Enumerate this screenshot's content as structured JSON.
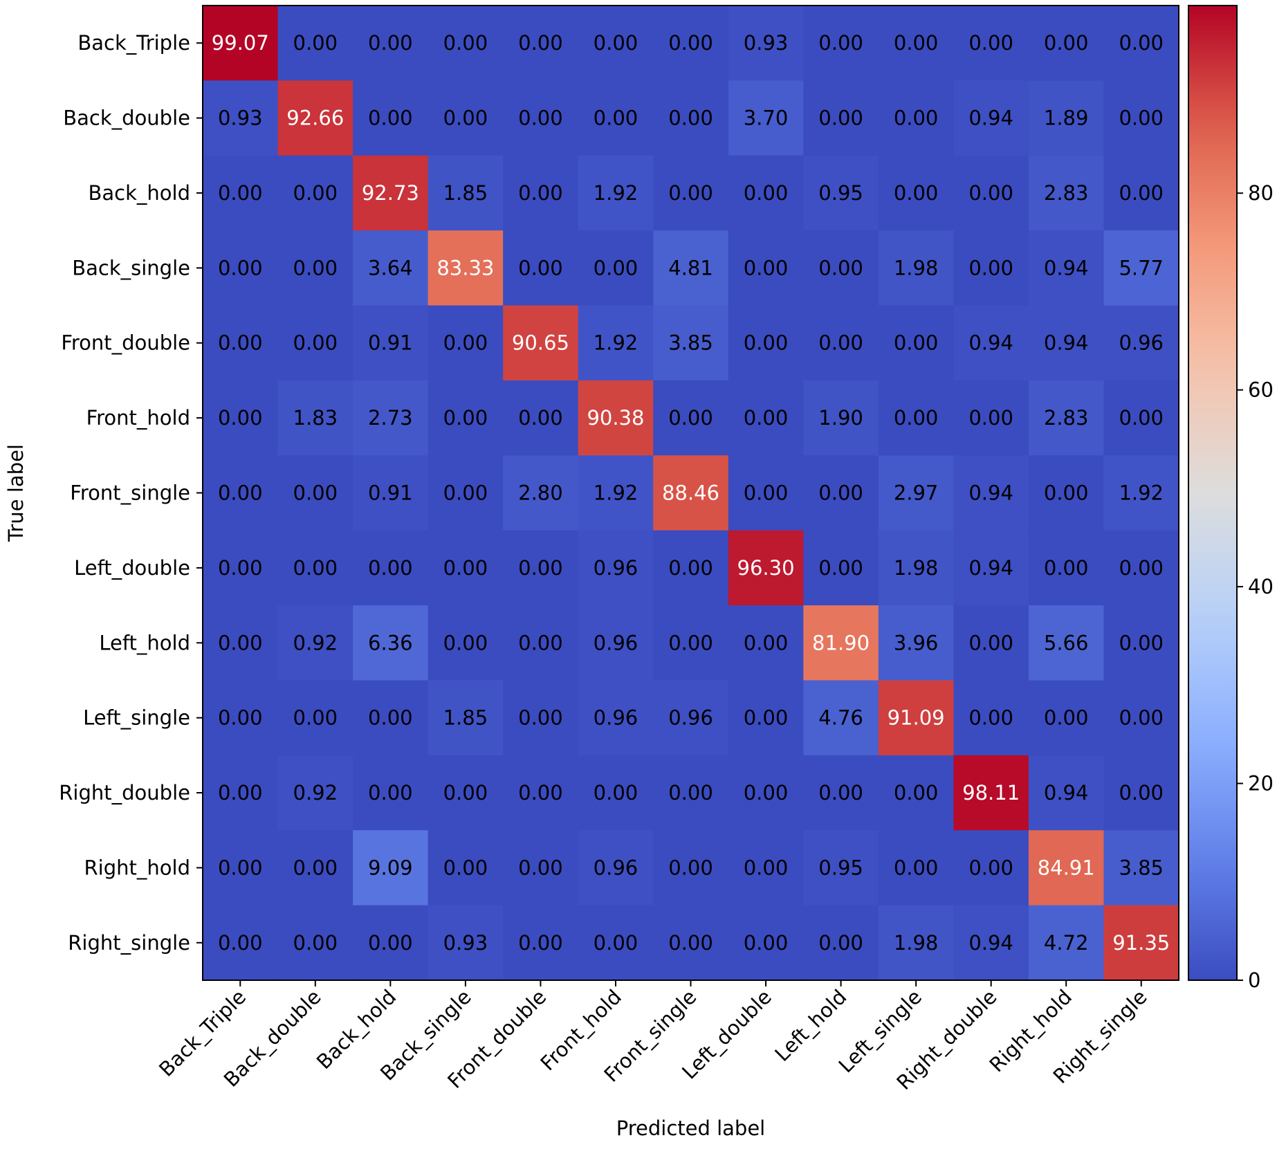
{
  "chart_data": {
    "type": "heatmap",
    "title": "",
    "xlabel": "Predicted label",
    "ylabel": "True label",
    "colormap": "coolwarm",
    "value_range": [
      0,
      99.07
    ],
    "colorbar_ticks": [
      0,
      20,
      40,
      60,
      80
    ],
    "rows": [
      "Back_Triple",
      "Back_double",
      "Back_hold",
      "Back_single",
      "Front_double",
      "Front_hold",
      "Front_single",
      "Left_double",
      "Left_hold",
      "Left_single",
      "Right_double",
      "Right_hold",
      "Right_single"
    ],
    "columns": [
      "Back_Triple",
      "Back_double",
      "Back_hold",
      "Back_single",
      "Front_double",
      "Front_hold",
      "Front_single",
      "Left_double",
      "Left_hold",
      "Left_single",
      "Right_double",
      "Right_hold",
      "Right_single"
    ],
    "values": [
      [
        "99.07",
        "0.00",
        "0.00",
        "0.00",
        "0.00",
        "0.00",
        "0.00",
        "0.93",
        "0.00",
        "0.00",
        "0.00",
        "0.00",
        "0.00"
      ],
      [
        "0.93",
        "92.66",
        "0.00",
        "0.00",
        "0.00",
        "0.00",
        "0.00",
        "3.70",
        "0.00",
        "0.00",
        "0.94",
        "1.89",
        "0.00"
      ],
      [
        "0.00",
        "0.00",
        "92.73",
        "1.85",
        "0.00",
        "1.92",
        "0.00",
        "0.00",
        "0.95",
        "0.00",
        "0.00",
        "2.83",
        "0.00"
      ],
      [
        "0.00",
        "0.00",
        "3.64",
        "83.33",
        "0.00",
        "0.00",
        "4.81",
        "0.00",
        "0.00",
        "1.98",
        "0.00",
        "0.94",
        "5.77"
      ],
      [
        "0.00",
        "0.00",
        "0.91",
        "0.00",
        "90.65",
        "1.92",
        "3.85",
        "0.00",
        "0.00",
        "0.00",
        "0.94",
        "0.94",
        "0.96"
      ],
      [
        "0.00",
        "1.83",
        "2.73",
        "0.00",
        "0.00",
        "90.38",
        "0.00",
        "0.00",
        "1.90",
        "0.00",
        "0.00",
        "2.83",
        "0.00"
      ],
      [
        "0.00",
        "0.00",
        "0.91",
        "0.00",
        "2.80",
        "1.92",
        "88.46",
        "0.00",
        "0.00",
        "2.97",
        "0.94",
        "0.00",
        "1.92"
      ],
      [
        "0.00",
        "0.00",
        "0.00",
        "0.00",
        "0.00",
        "0.96",
        "0.00",
        "96.30",
        "0.00",
        "1.98",
        "0.94",
        "0.00",
        "0.00"
      ],
      [
        "0.00",
        "0.92",
        "6.36",
        "0.00",
        "0.00",
        "0.96",
        "0.00",
        "0.00",
        "81.90",
        "3.96",
        "0.00",
        "5.66",
        "0.00"
      ],
      [
        "0.00",
        "0.00",
        "0.00",
        "1.85",
        "0.00",
        "0.96",
        "0.96",
        "0.00",
        "4.76",
        "91.09",
        "0.00",
        "0.00",
        "0.00"
      ],
      [
        "0.00",
        "0.92",
        "0.00",
        "0.00",
        "0.00",
        "0.00",
        "0.00",
        "0.00",
        "0.00",
        "0.00",
        "98.11",
        "0.94",
        "0.00"
      ],
      [
        "0.00",
        "0.00",
        "9.09",
        "0.00",
        "0.00",
        "0.96",
        "0.00",
        "0.00",
        "0.95",
        "0.00",
        "0.00",
        "84.91",
        "3.85"
      ],
      [
        "0.00",
        "0.00",
        "0.00",
        "0.93",
        "0.00",
        "0.00",
        "0.00",
        "0.00",
        "0.00",
        "1.98",
        "0.94",
        "4.72",
        "91.35"
      ]
    ]
  }
}
